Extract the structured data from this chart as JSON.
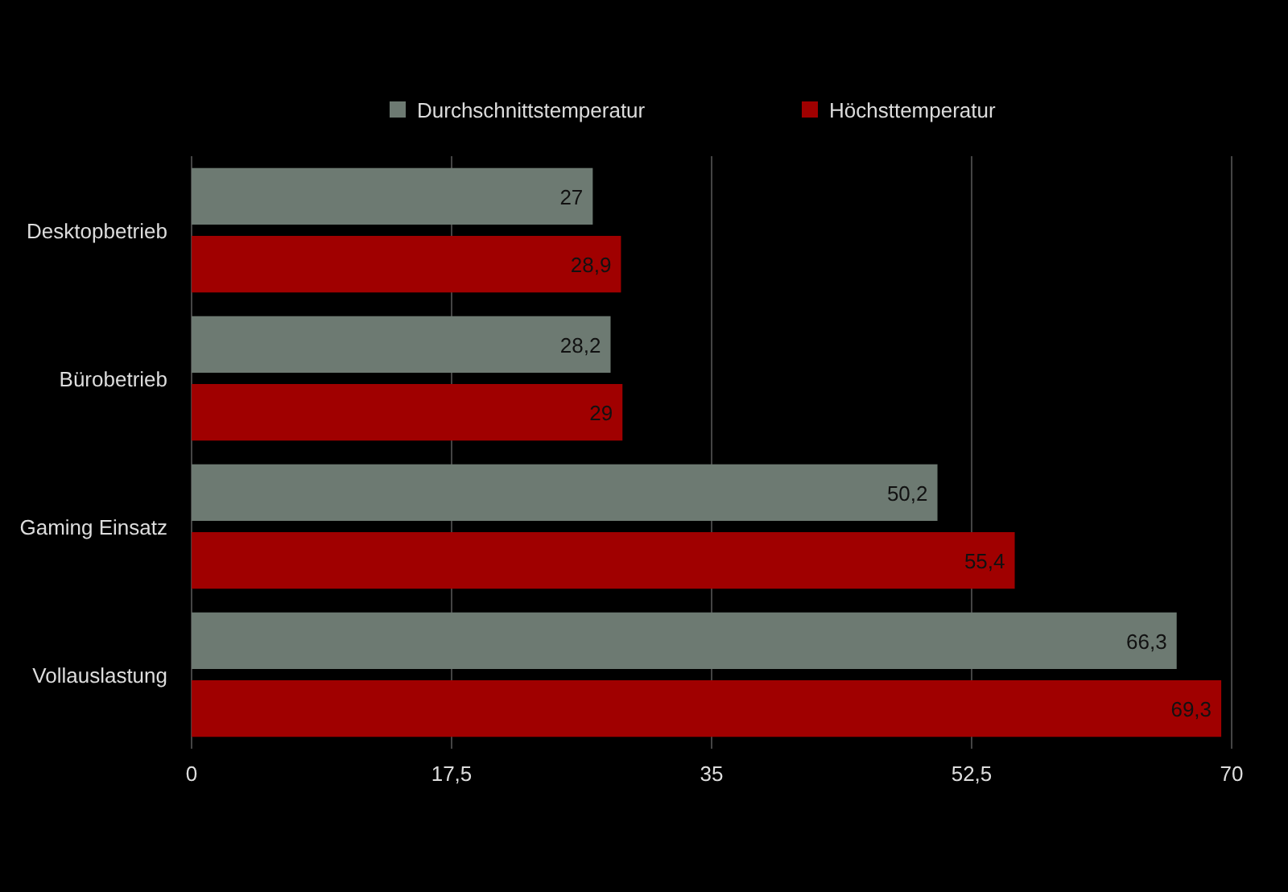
{
  "chart_data": {
    "type": "bar",
    "orientation": "horizontal",
    "categories": [
      "Desktopbetrieb",
      "Bürobetrieb",
      "Gaming Einsatz",
      "Vollauslastung"
    ],
    "series": [
      {
        "name": "Durchschnittstemperatur",
        "color": "#6d7a72",
        "values": [
          27,
          28.2,
          50.2,
          66.3
        ],
        "value_labels": [
          "27",
          "28,2",
          "50,2",
          "66,3"
        ]
      },
      {
        "name": "Höchsttemperatur",
        "color": "#a00000",
        "values": [
          28.9,
          29,
          55.4,
          69.3
        ],
        "value_labels": [
          "28,9",
          "29",
          "55,4",
          "69,3"
        ]
      }
    ],
    "xlim": [
      0,
      70
    ],
    "xticks": [
      0,
      {
        "value": 17.5,
        "label": "17,5"
      },
      35,
      {
        "value": 52.5,
        "label": "52,5"
      },
      70
    ],
    "grid": "x",
    "legend": "top"
  }
}
